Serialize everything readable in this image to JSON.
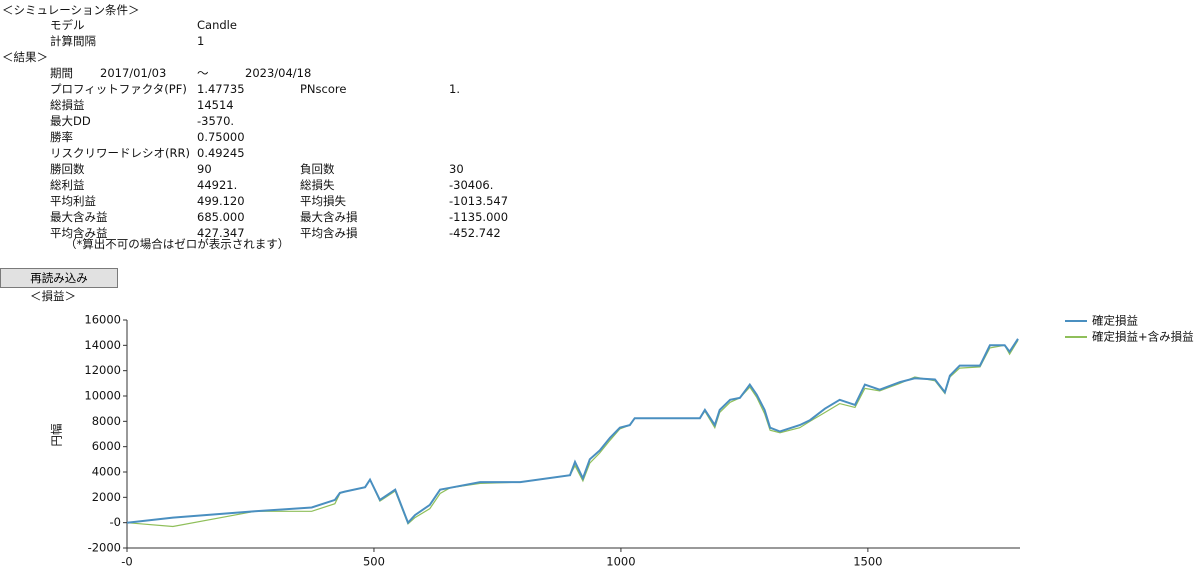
{
  "conditions": {
    "title": "＜シミュレーション条件＞",
    "rows": [
      [
        "モデル",
        "Candle"
      ],
      [
        "計算間隔",
        "1"
      ]
    ]
  },
  "results": {
    "title": "＜結果＞",
    "period": {
      "label": "期間",
      "start": "2017/01/03",
      "separator": "～",
      "end": "2023/04/18"
    },
    "rows": [
      [
        "プロフィットファクタ(PF)",
        "1.47735",
        "PNscore",
        "1."
      ],
      [
        "総損益",
        "14514"
      ],
      [
        "最大DD",
        "-3570."
      ],
      [
        "勝率",
        "0.75000"
      ],
      [
        "リスクリワードレシオ(RR)",
        "0.49245"
      ],
      [
        "勝回数",
        "90",
        "負回数",
        "30"
      ],
      [
        "総利益",
        "44921.",
        "総損失",
        "-30406."
      ],
      [
        "平均利益",
        "499.120",
        "平均損失",
        "-1013.547"
      ],
      [
        "最大含み益",
        "685.000",
        "最大含み損",
        "-1135.000"
      ],
      [
        "平均含み益",
        "427.347",
        "平均含み損",
        "-452.742"
      ]
    ],
    "note": "（*算出不可の場合はゼロが表示されます）"
  },
  "button": "再読み込み",
  "chart_data": {
    "type": "line",
    "title": "＜損益＞",
    "y_label": "円幅",
    "x": [
      0,
      93,
      259,
      374,
      421,
      431,
      441,
      482,
      492,
      512,
      543,
      569,
      583,
      613,
      634,
      654,
      715,
      796,
      897,
      907,
      923,
      937,
      957,
      978,
      998,
      1018,
      1028,
      1160,
      1170,
      1190,
      1200,
      1221,
      1241,
      1261,
      1275,
      1291,
      1302,
      1322,
      1362,
      1383,
      1413,
      1443,
      1474,
      1494,
      1524,
      1565,
      1595,
      1636,
      1656,
      1666,
      1686,
      1727,
      1747,
      1777,
      1787,
      1804
    ],
    "series": [
      {
        "name": "確定損益",
        "color": "#4a8fc0",
        "values": [
          0,
          400,
          900,
          1200,
          1800,
          2350,
          2450,
          2800,
          3400,
          1800,
          2600,
          0,
          600,
          1400,
          2600,
          2750,
          3200,
          3200,
          3750,
          4800,
          3500,
          5000,
          5700,
          6700,
          7500,
          7700,
          8250,
          8250,
          8900,
          7700,
          8900,
          9700,
          9850,
          10900,
          10100,
          8900,
          7500,
          7200,
          7700,
          8100,
          9000,
          9700,
          9300,
          10900,
          10500,
          11100,
          11400,
          11300,
          10300,
          11600,
          12400,
          12400,
          14000,
          14000,
          13500,
          14514
        ]
      },
      {
        "name": "確定損益+含み損益",
        "color": "#8fbf5a",
        "values": [
          0,
          -300,
          900,
          900,
          1500,
          2300,
          2450,
          2800,
          3400,
          1700,
          2500,
          -100,
          400,
          1100,
          2300,
          2750,
          3100,
          3200,
          3750,
          4500,
          3300,
          4700,
          5500,
          6500,
          7400,
          7700,
          8250,
          8250,
          8800,
          7500,
          8700,
          9500,
          9850,
          10700,
          9900,
          8600,
          7300,
          7100,
          7500,
          8000,
          8700,
          9400,
          9100,
          10600,
          10400,
          11000,
          11500,
          11200,
          10200,
          11500,
          12200,
          12300,
          13800,
          14000,
          13300,
          14400
        ]
      }
    ],
    "xlim": [
      0,
      1808
    ],
    "xticks": [
      {
        "value": 0,
        "label": "-0"
      },
      500,
      1000,
      1500
    ],
    "ylim": [
      -2000,
      16000
    ],
    "yticks": [
      {
        "value": -2000,
        "label": "-2000"
      },
      {
        "value": 0,
        "label": "-0"
      },
      2000,
      4000,
      6000,
      8000,
      10000,
      12000,
      14000,
      16000
    ],
    "grid": false,
    "legend": "top-right"
  }
}
